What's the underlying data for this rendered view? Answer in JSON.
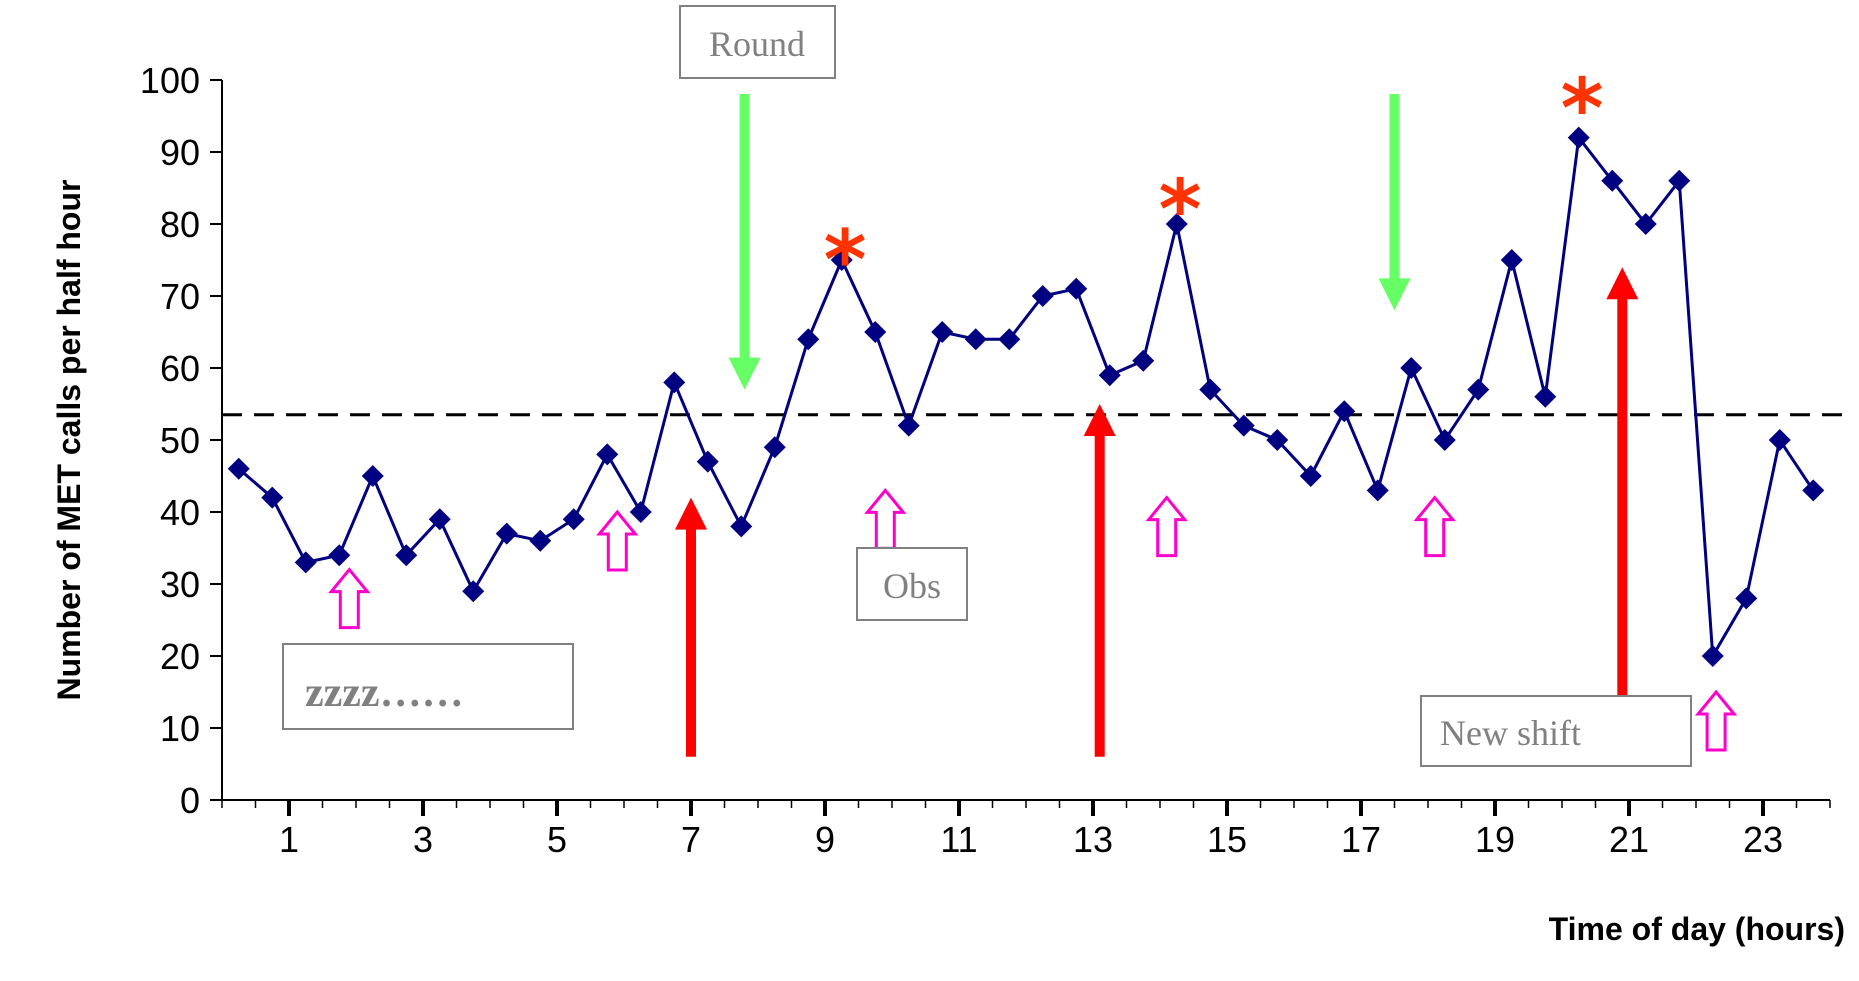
{
  "chart_data": {
    "type": "line",
    "xlabel": "Time of day (hours)",
    "ylabel": "Number of  MET calls per half hour",
    "xlim": [
      0,
      24
    ],
    "ylim": [
      0,
      100
    ],
    "x_tick_labels": [
      "1",
      "3",
      "5",
      "7",
      "9",
      "11",
      "13",
      "15",
      "17",
      "19",
      "21",
      "23"
    ],
    "y_tick_labels": [
      "0",
      "10",
      "20",
      "30",
      "40",
      "50",
      "60",
      "70",
      "80",
      "90",
      "100"
    ],
    "reference_line": {
      "y": 53.5,
      "style": "dashed"
    },
    "series": [
      {
        "x": [
          0.25,
          0.75,
          1.25,
          1.75,
          2.25,
          2.75,
          3.25,
          3.75,
          4.25,
          4.75,
          5.25,
          5.75,
          6.25,
          6.75,
          7.25,
          7.75,
          8.25,
          8.75,
          9.25,
          9.75,
          10.25,
          10.75,
          11.25,
          11.75,
          12.25,
          12.75,
          13.25,
          13.75,
          14.25,
          14.75,
          15.25,
          15.75,
          16.25,
          16.75,
          17.25,
          17.75,
          18.25,
          18.75,
          19.25,
          19.75,
          20.25,
          20.75,
          21.25,
          21.75,
          22.25,
          22.75,
          23.25,
          23.75
        ],
        "values": [
          46,
          42,
          33,
          34,
          45,
          34,
          39,
          29,
          37,
          36,
          39,
          48,
          40,
          58,
          47,
          38,
          49,
          64,
          75,
          65,
          52,
          65,
          64,
          64,
          70,
          71,
          59,
          61,
          80,
          57,
          52,
          50,
          45,
          54,
          43,
          60,
          50,
          57,
          75,
          56,
          92,
          86,
          80,
          86,
          20,
          28,
          50,
          43
        ]
      }
    ],
    "colors": {
      "series": "#000080",
      "red_arrow": "#ff0000",
      "green_arrow": "#66ff66",
      "magenta_arrow": "#ff00cc",
      "asterisk": "#ff3300",
      "box_border": "#808080",
      "box_text": "#808080"
    },
    "annotations": {
      "round": "Round",
      "obs": "Obs",
      "sleep": "zzzz……",
      "new_shift": "New shift",
      "asterisk": "*",
      "red_arrows_x": [
        7,
        13.1,
        20.9
      ],
      "green_arrows_x": [
        7.8,
        17.5
      ],
      "magenta_arrows_x": [
        1.9,
        5.9,
        9.9,
        14.1,
        18.1,
        22.3
      ],
      "asterisks_x": [
        9.3,
        14.3,
        20.3
      ]
    }
  }
}
